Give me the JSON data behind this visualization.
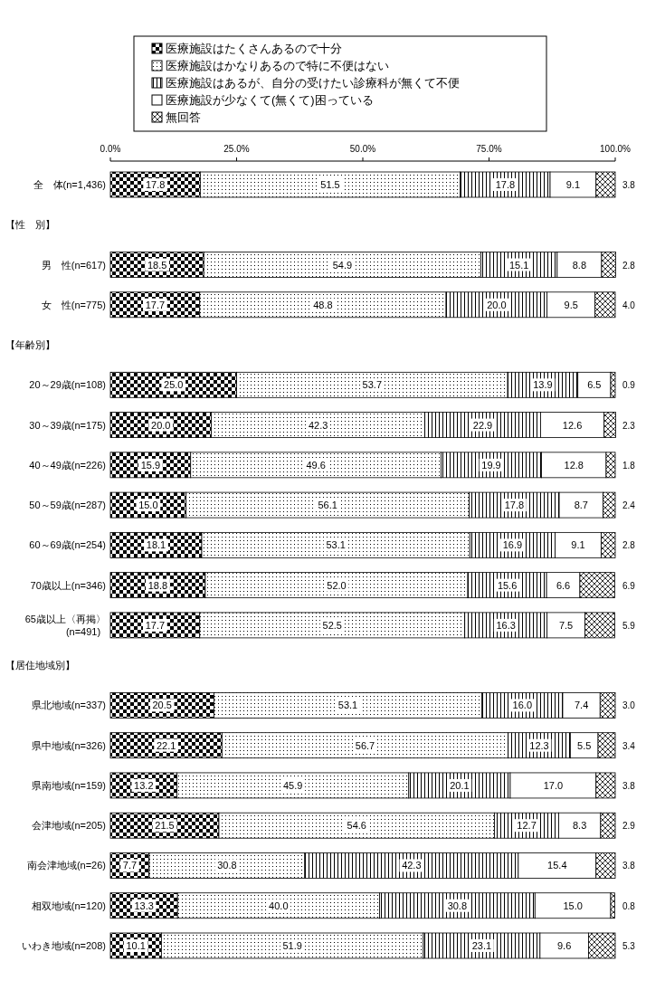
{
  "chart_data": {
    "type": "bar",
    "orientation": "horizontal",
    "stacked": true,
    "legend": "top",
    "categories": [
      "全　体(n=1,436)",
      null,
      "男　性(n=617)",
      "女　性(n=775)",
      null,
      "20～29歳(n=108)",
      "30～39歳(n=175)",
      "40～49歳(n=226)",
      "50～59歳(n=287)",
      "60～69歳(n=254)",
      "70歳以上(n=346)",
      "65歳以上〈再掲〉\n(n=491)",
      null,
      "県北地域(n=337)",
      "県中地域(n=326)",
      "県南地域(n=159)",
      "会津地域(n=205)",
      "南会津地域(n=26)",
      "相双地域(n=120)",
      "いわき地域(n=208)"
    ],
    "annotations": [
      "【性　別】",
      "【年齢別】",
      "【居住地域別】"
    ],
    "series": [
      {
        "name": "医療施設はたくさんあるので十分",
        "color": "#000000",
        "values": [
          17.8,
          null,
          18.5,
          17.7,
          null,
          25.0,
          20.0,
          15.9,
          15.0,
          18.1,
          18.8,
          17.7,
          null,
          20.5,
          22.1,
          13.2,
          21.5,
          7.7,
          13.3,
          10.1
        ],
        "value_labels": [
          "17.8",
          null,
          "18.5",
          "17.7",
          null,
          "25.0",
          "20.0",
          "15.9",
          "15.0",
          "18.1",
          "18.8",
          "17.7",
          null,
          "20.5",
          "22.1",
          "13.2",
          "21.5",
          "7.7",
          "13.3",
          "10.1"
        ]
      },
      {
        "name": "医療施設はかなりあるので特に不便はない",
        "color": "#000000",
        "values": [
          51.5,
          null,
          54.9,
          48.8,
          null,
          53.7,
          42.3,
          49.6,
          56.1,
          53.1,
          52.0,
          52.5,
          null,
          53.1,
          56.7,
          45.9,
          54.6,
          30.8,
          40.0,
          51.9
        ],
        "value_labels": [
          "51.5",
          null,
          "54.9",
          "48.8",
          null,
          "53.7",
          "42.3",
          "49.6",
          "56.1",
          "53.1",
          "52.0",
          "52.5",
          null,
          "53.1",
          "56.7",
          "45.9",
          "54.6",
          "30.8",
          "40.0",
          "51.9"
        ]
      },
      {
        "name": "医療施設はあるが、自分の受けたい診療科が無くて不便",
        "color": "#000000",
        "values": [
          17.8,
          null,
          15.1,
          20.0,
          null,
          13.9,
          22.9,
          19.9,
          17.8,
          16.9,
          15.6,
          16.3,
          null,
          16.0,
          12.3,
          20.1,
          12.7,
          42.3,
          30.8,
          23.1
        ],
        "value_labels": [
          "17.8",
          null,
          "15.1",
          "20.0",
          null,
          "13.9",
          "22.9",
          "19.9",
          "17.8",
          "16.9",
          "15.6",
          "16.3",
          null,
          "16.0",
          "12.3",
          "20.1",
          "12.7",
          "42.3",
          "30.8",
          "23.1"
        ]
      },
      {
        "name": "医療施設が少なくて(無くて)困っている",
        "color": "#ffffff",
        "values": [
          9.1,
          null,
          8.8,
          9.5,
          null,
          6.5,
          12.6,
          12.8,
          8.7,
          9.1,
          6.6,
          7.5,
          null,
          7.4,
          5.5,
          17.0,
          8.3,
          15.4,
          15.0,
          9.6
        ],
        "value_labels": [
          "9.1",
          null,
          "8.8",
          "9.5",
          null,
          "6.5",
          "12.6",
          "12.8",
          "8.7",
          "9.1",
          "6.6",
          "7.5",
          null,
          "7.4",
          "5.5",
          "17.0",
          "8.3",
          "15.4",
          "15.0",
          "9.6"
        ]
      },
      {
        "name": "無回答",
        "color": "#000000",
        "values": [
          3.8,
          null,
          2.8,
          4.0,
          null,
          0.9,
          2.3,
          1.8,
          2.4,
          2.8,
          6.9,
          5.9,
          null,
          3.0,
          3.4,
          3.8,
          2.9,
          3.8,
          0.8,
          5.3
        ],
        "value_labels": [
          "3.8",
          null,
          "2.8",
          "4.0",
          null,
          "0.9",
          "2.3",
          "1.8",
          "2.4",
          "2.8",
          "6.9",
          "5.9",
          null,
          "3.0",
          "3.4",
          "3.8",
          "2.9",
          "3.8",
          "0.8",
          "5.3"
        ]
      }
    ],
    "xlim": [
      0,
      100
    ],
    "xticks": [
      {
        "value": 0,
        "label": "0.0%"
      },
      {
        "value": 25,
        "label": "25.0%"
      },
      {
        "value": 50,
        "label": "50.0%"
      },
      {
        "value": 75,
        "label": "75.0%"
      },
      {
        "value": 100,
        "label": "100.0%"
      }
    ]
  }
}
